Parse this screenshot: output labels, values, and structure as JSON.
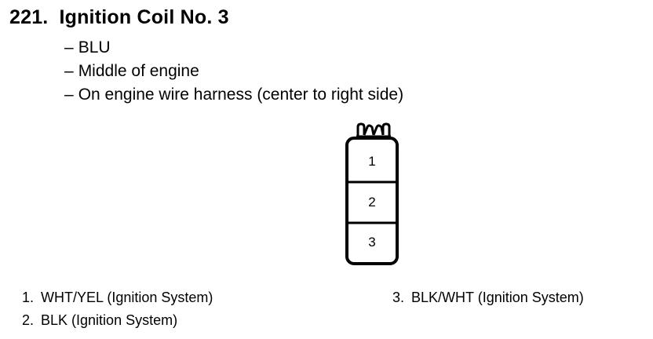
{
  "title": {
    "number": "221.",
    "text": "Ignition Coil No. 3"
  },
  "details": [
    {
      "dash": "–",
      "text": "BLU"
    },
    {
      "dash": "–",
      "text": "Middle of engine"
    },
    {
      "dash": "–",
      "text": "On engine wire harness (center to right side)"
    }
  ],
  "connector": {
    "cavities": [
      "1",
      "2",
      "3"
    ]
  },
  "pins": [
    {
      "index": "1.",
      "text": "WHT/YEL (Ignition System)"
    },
    {
      "index": "2.",
      "text": "BLK (Ignition System)"
    },
    {
      "index": "3.",
      "text": "BLK/WHT (Ignition System)"
    }
  ]
}
